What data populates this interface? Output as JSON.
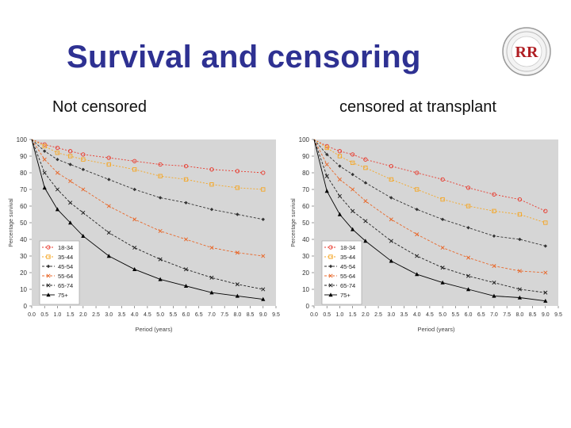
{
  "slide": {
    "title": "Survival and censoring",
    "left_subtitle": "Not censored",
    "right_subtitle": "censored at transplant"
  },
  "logo": {
    "text": "RR"
  },
  "chart_data": [
    {
      "type": "line",
      "xlabel": "Period (years)",
      "ylabel": "Percentage survival",
      "xlim": [
        0,
        9.5
      ],
      "ylim": [
        0,
        100
      ],
      "xticks": [
        "0.0",
        "0.5",
        "1.0",
        "1.5",
        "2.0",
        "2.5",
        "3.0",
        "3.5",
        "4.0",
        "4.5",
        "5.0",
        "5.5",
        "6.0",
        "6.5",
        "7.0",
        "7.5",
        "8.0",
        "8.5",
        "9.0",
        "9.5"
      ],
      "yticks": [
        "0",
        "10",
        "20",
        "30",
        "40",
        "50",
        "60",
        "70",
        "80",
        "90",
        "100"
      ],
      "grid": false,
      "legend": "bottom-left",
      "series": [
        {
          "name": "18-34",
          "color": "#e8392c",
          "marker": "o",
          "dash": "2,2",
          "x": [
            0,
            0.5,
            1,
            1.5,
            2,
            3,
            4,
            5,
            6,
            7,
            8,
            9
          ],
          "y": [
            100,
            97,
            95,
            93,
            91,
            89,
            87,
            85,
            84,
            82,
            81,
            80
          ]
        },
        {
          "name": "35-44",
          "color": "#f5a623",
          "marker": "s",
          "dash": "2,2",
          "x": [
            0,
            0.5,
            1,
            1.5,
            2,
            3,
            4,
            5,
            6,
            7,
            8,
            9
          ],
          "y": [
            100,
            96,
            92,
            90,
            88,
            85,
            82,
            78,
            76,
            73,
            71,
            70
          ]
        },
        {
          "name": "45-54",
          "color": "#333333",
          "marker": "d",
          "dash": "3,2",
          "x": [
            0,
            0.5,
            1,
            1.5,
            2,
            3,
            4,
            5,
            6,
            7,
            8,
            9
          ],
          "y": [
            100,
            93,
            88,
            85,
            82,
            76,
            70,
            65,
            62,
            58,
            55,
            52
          ]
        },
        {
          "name": "55-64",
          "color": "#e8692c",
          "marker": "x",
          "dash": "3,2",
          "x": [
            0,
            0.5,
            1,
            1.5,
            2,
            3,
            4,
            5,
            6,
            7,
            8,
            9
          ],
          "y": [
            100,
            88,
            80,
            75,
            70,
            60,
            52,
            45,
            40,
            35,
            32,
            30
          ]
        },
        {
          "name": "65-74",
          "color": "#222222",
          "marker": "x",
          "dash": "3,2",
          "x": [
            0,
            0.5,
            1,
            1.5,
            2,
            3,
            4,
            5,
            6,
            7,
            8,
            9
          ],
          "y": [
            100,
            80,
            70,
            62,
            56,
            44,
            35,
            28,
            22,
            17,
            13,
            10
          ]
        },
        {
          "name": "75+",
          "color": "#000000",
          "marker": "^",
          "dash": "",
          "x": [
            0,
            0.5,
            1,
            1.5,
            2,
            3,
            4,
            5,
            6,
            7,
            8,
            9
          ],
          "y": [
            100,
            71,
            58,
            50,
            42,
            30,
            22,
            16,
            12,
            8,
            6,
            4
          ]
        }
      ]
    },
    {
      "type": "line",
      "xlabel": "Period (years)",
      "ylabel": "Percentage survival",
      "xlim": [
        0,
        9.5
      ],
      "ylim": [
        0,
        100
      ],
      "xticks": [
        "0.0",
        "0.5",
        "1.0",
        "1.5",
        "2.0",
        "2.5",
        "3.0",
        "3.5",
        "4.0",
        "4.5",
        "5.0",
        "5.5",
        "6.0",
        "6.5",
        "7.0",
        "7.5",
        "8.0",
        "8.5",
        "9.0",
        "9.5"
      ],
      "yticks": [
        "0",
        "10",
        "20",
        "30",
        "40",
        "50",
        "60",
        "70",
        "80",
        "90",
        "100"
      ],
      "grid": false,
      "legend": "bottom-left",
      "series": [
        {
          "name": "18-34",
          "color": "#e8392c",
          "marker": "o",
          "dash": "2,2",
          "x": [
            0,
            0.5,
            1,
            1.5,
            2,
            3,
            4,
            5,
            6,
            7,
            8,
            9
          ],
          "y": [
            100,
            96,
            93,
            91,
            88,
            84,
            80,
            76,
            71,
            67,
            64,
            57
          ]
        },
        {
          "name": "35-44",
          "color": "#f5a623",
          "marker": "s",
          "dash": "2,2",
          "x": [
            0,
            0.5,
            1,
            1.5,
            2,
            3,
            4,
            5,
            6,
            7,
            8,
            9
          ],
          "y": [
            100,
            95,
            90,
            86,
            83,
            76,
            70,
            64,
            60,
            57,
            55,
            50
          ]
        },
        {
          "name": "45-54",
          "color": "#333333",
          "marker": "d",
          "dash": "3,2",
          "x": [
            0,
            0.5,
            1,
            1.5,
            2,
            3,
            4,
            5,
            6,
            7,
            8,
            9
          ],
          "y": [
            100,
            91,
            84,
            79,
            74,
            65,
            58,
            52,
            47,
            42,
            40,
            36
          ]
        },
        {
          "name": "55-64",
          "color": "#e8692c",
          "marker": "x",
          "dash": "3,2",
          "x": [
            0,
            0.5,
            1,
            1.5,
            2,
            3,
            4,
            5,
            6,
            7,
            8,
            9
          ],
          "y": [
            100,
            85,
            76,
            70,
            63,
            52,
            43,
            35,
            29,
            24,
            21,
            20
          ]
        },
        {
          "name": "65-74",
          "color": "#222222",
          "marker": "x",
          "dash": "3,2",
          "x": [
            0,
            0.5,
            1,
            1.5,
            2,
            3,
            4,
            5,
            6,
            7,
            8,
            9
          ],
          "y": [
            100,
            78,
            66,
            57,
            51,
            39,
            30,
            23,
            18,
            14,
            10,
            8
          ]
        },
        {
          "name": "75+",
          "color": "#000000",
          "marker": "^",
          "dash": "",
          "x": [
            0,
            0.5,
            1,
            1.5,
            2,
            3,
            4,
            5,
            6,
            7,
            8,
            9
          ],
          "y": [
            100,
            69,
            55,
            46,
            39,
            27,
            19,
            14,
            10,
            6,
            5,
            3
          ]
        }
      ]
    }
  ]
}
